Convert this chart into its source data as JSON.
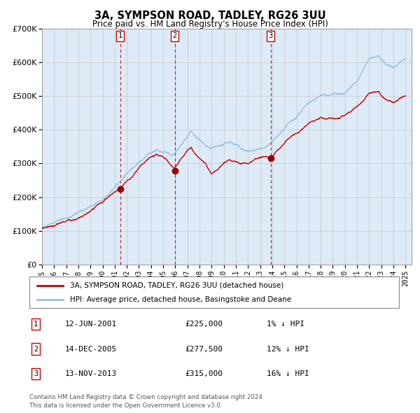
{
  "title": "3A, SYMPSON ROAD, TADLEY, RG26 3UU",
  "subtitle": "Price paid vs. HM Land Registry's House Price Index (HPI)",
  "ylim": [
    0,
    700000
  ],
  "yticks": [
    0,
    100000,
    200000,
    300000,
    400000,
    500000,
    600000,
    700000
  ],
  "ytick_labels": [
    "£0",
    "£100K",
    "£200K",
    "£300K",
    "£400K",
    "£500K",
    "£600K",
    "£700K"
  ],
  "xlim_start": 1995.0,
  "xlim_end": 2025.5,
  "xticks": [
    1995,
    1996,
    1997,
    1998,
    1999,
    2000,
    2001,
    2002,
    2003,
    2004,
    2005,
    2006,
    2007,
    2008,
    2009,
    2010,
    2011,
    2012,
    2013,
    2014,
    2015,
    2016,
    2017,
    2018,
    2019,
    2020,
    2021,
    2022,
    2023,
    2024,
    2025
  ],
  "hpi_color": "#99bfdf",
  "price_color": "#cc0000",
  "sale_dot_color": "#990000",
  "vline_color": "#cc0000",
  "grid_color": "#cccccc",
  "bg_color": "#ddeaf7",
  "legend_label_price": "3A, SYMPSON ROAD, TADLEY, RG26 3UU (detached house)",
  "legend_label_hpi": "HPI: Average price, detached house, Basingstoke and Deane",
  "sales": [
    {
      "num": 1,
      "date": "12-JUN-2001",
      "x": 2001.45,
      "price": 225000,
      "pct": "1%",
      "direction": "↓"
    },
    {
      "num": 2,
      "date": "14-DEC-2005",
      "x": 2005.95,
      "price": 277500,
      "pct": "12%",
      "direction": "↓"
    },
    {
      "num": 3,
      "date": "13-NOV-2013",
      "x": 2013.87,
      "price": 315000,
      "pct": "16%",
      "direction": "↓"
    }
  ],
  "footer1": "Contains HM Land Registry data © Crown copyright and database right 2024.",
  "footer2": "This data is licensed under the Open Government Licence v3.0."
}
